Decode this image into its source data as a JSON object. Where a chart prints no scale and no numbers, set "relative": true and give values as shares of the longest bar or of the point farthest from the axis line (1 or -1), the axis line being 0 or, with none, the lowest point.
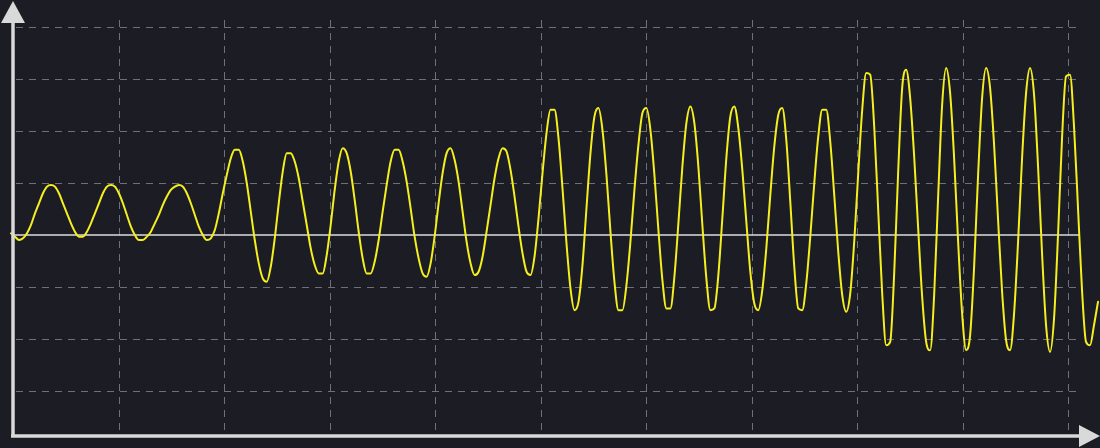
{
  "chart_data": {
    "type": "line",
    "relative": true,
    "categories": [
      null,
      null,
      null,
      null,
      null,
      null,
      null,
      null,
      null,
      null,
      null,
      null,
      null,
      null,
      null,
      null,
      null,
      null,
      null,
      null,
      null,
      null,
      null,
      null,
      null,
      null,
      null,
      null,
      null,
      null,
      null,
      null,
      null,
      null,
      null,
      null,
      null,
      null,
      null,
      null,
      null,
      null,
      null,
      null,
      null,
      null,
      null,
      null,
      null,
      null,
      null,
      null,
      null,
      null,
      null,
      null,
      null,
      null,
      null,
      null,
      null,
      null,
      null,
      null,
      null,
      null,
      null,
      null,
      null,
      null,
      null,
      null,
      null,
      null,
      null,
      null,
      null,
      null,
      null,
      null,
      null,
      null,
      null,
      null,
      null,
      null,
      null,
      null,
      null,
      null,
      null,
      null,
      null,
      null,
      null,
      null,
      null,
      null,
      null,
      null,
      null,
      null,
      null,
      null,
      null,
      null,
      null,
      null,
      null,
      null,
      null,
      null,
      null,
      null,
      null,
      null,
      null,
      null,
      null,
      null,
      null,
      null,
      null,
      null,
      null,
      null,
      null,
      null,
      null,
      null,
      null,
      null,
      null,
      null,
      null,
      null,
      null,
      null,
      null,
      null,
      null,
      null,
      null,
      null,
      null,
      null,
      null,
      null,
      null,
      null,
      null,
      null,
      null,
      null,
      null,
      null,
      null,
      null,
      null,
      null,
      null,
      null,
      null,
      null,
      null,
      null,
      null,
      null,
      null,
      null,
      null,
      null,
      null,
      null,
      null,
      null,
      null,
      null,
      null,
      null,
      null,
      null,
      null,
      null,
      null,
      null,
      null,
      null,
      null,
      null,
      null,
      null,
      null,
      null,
      null,
      null,
      null,
      null,
      null,
      null,
      null,
      null,
      null,
      null,
      null,
      null,
      null,
      null,
      null,
      null,
      null,
      null,
      null,
      null,
      null,
      null,
      null,
      null,
      null,
      null,
      null,
      null,
      null,
      null,
      null,
      null,
      null,
      null,
      null,
      null,
      null,
      null,
      null,
      null,
      null,
      null,
      null,
      null,
      null,
      null,
      null,
      null,
      null,
      null,
      null,
      null,
      null,
      null,
      null,
      null,
      null,
      null,
      null,
      null,
      null,
      null,
      null,
      null,
      null,
      null,
      null,
      null,
      null,
      null,
      null,
      null,
      null,
      null,
      null,
      null,
      null,
      null,
      null
    ],
    "values": [
      0.01,
      -0.01,
      -0.03,
      -0.02,
      0.01,
      0.06,
      0.13,
      0.19,
      0.25,
      0.29,
      0.3,
      0.29,
      0.25,
      0.19,
      0.13,
      0.07,
      0.02,
      -0.01,
      -0.01,
      0.02,
      0.07,
      0.13,
      0.19,
      0.25,
      0.29,
      0.3,
      0.29,
      0.25,
      0.19,
      0.12,
      0.05,
      0.0,
      -0.03,
      -0.03,
      -0.01,
      0.02,
      0.07,
      0.12,
      0.18,
      0.23,
      0.27,
      0.29,
      0.3,
      0.29,
      0.25,
      0.19,
      0.12,
      0.05,
      0.0,
      -0.03,
      -0.02,
      0.03,
      0.13,
      0.25,
      0.36,
      0.46,
      0.51,
      0.51,
      0.44,
      0.31,
      0.14,
      -0.03,
      -0.17,
      -0.26,
      -0.28,
      -0.19,
      -0.02,
      0.19,
      0.38,
      0.49,
      0.49,
      0.44,
      0.34,
      0.2,
      0.06,
      -0.08,
      -0.18,
      -0.23,
      -0.23,
      -0.12,
      0.06,
      0.27,
      0.44,
      0.52,
      0.49,
      0.38,
      0.21,
      0.02,
      -0.14,
      -0.23,
      -0.23,
      -0.16,
      -0.03,
      0.14,
      0.3,
      0.44,
      0.51,
      0.51,
      0.44,
      0.32,
      0.16,
      -0.01,
      -0.14,
      -0.23,
      -0.25,
      -0.17,
      -0.01,
      0.19,
      0.37,
      0.49,
      0.52,
      0.45,
      0.32,
      0.14,
      -0.04,
      -0.17,
      -0.24,
      -0.22,
      -0.13,
      0.02,
      0.18,
      0.34,
      0.46,
      0.52,
      0.5,
      0.39,
      0.23,
      0.05,
      -0.11,
      -0.22,
      -0.24,
      -0.13,
      0.1,
      0.37,
      0.61,
      0.75,
      0.75,
      0.58,
      0.28,
      -0.05,
      -0.32,
      -0.45,
      -0.4,
      -0.18,
      0.16,
      0.49,
      0.71,
      0.76,
      0.63,
      0.36,
      0.02,
      -0.28,
      -0.45,
      -0.45,
      -0.3,
      -0.04,
      0.27,
      0.54,
      0.73,
      0.76,
      0.63,
      0.36,
      0.03,
      -0.27,
      -0.44,
      -0.44,
      -0.25,
      0.07,
      0.41,
      0.67,
      0.77,
      0.67,
      0.41,
      0.06,
      -0.26,
      -0.45,
      -0.44,
      -0.24,
      0.1,
      0.46,
      0.71,
      0.77,
      0.64,
      0.39,
      0.08,
      -0.22,
      -0.41,
      -0.45,
      -0.33,
      -0.08,
      0.24,
      0.53,
      0.72,
      0.76,
      0.57,
      0.2,
      -0.19,
      -0.44,
      -0.45,
      -0.29,
      -0.01,
      0.31,
      0.59,
      0.75,
      0.75,
      0.56,
      0.24,
      -0.1,
      -0.36,
      -0.46,
      -0.35,
      -0.04,
      0.37,
      0.75,
      0.97,
      0.96,
      0.65,
      0.15,
      -0.35,
      -0.66,
      -0.64,
      -0.23,
      0.38,
      0.88,
      0.99,
      0.82,
      0.47,
      0.04,
      -0.37,
      -0.64,
      -0.69,
      -0.36,
      0.23,
      0.78,
      1.0,
      0.85,
      0.46,
      -0.04,
      -0.47,
      -0.69,
      -0.6,
      -0.19,
      0.36,
      0.82,
      1.0,
      0.88,
      0.54,
      0.09,
      -0.34,
      -0.63,
      -0.69,
      -0.47,
      -0.04,
      0.46,
      0.85,
      1.0,
      0.84,
      0.41,
      -0.11,
      -0.54,
      -0.7,
      -0.5,
      0.0,
      0.58,
      0.95,
      0.96,
      0.65,
      0.16,
      -0.33,
      -0.64,
      -0.66,
      -0.54,
      -0.4
    ],
    "color": "#f5ef1f",
    "grid": true,
    "legend": false,
    "marker": "none",
    "line_style": "solid"
  }
}
